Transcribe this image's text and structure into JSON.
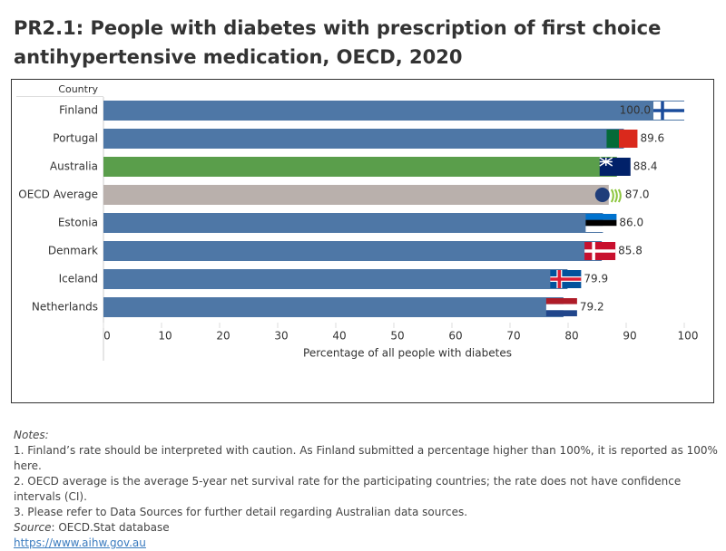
{
  "chart_data": {
    "type": "hbar",
    "title": "PR2.1: People with diabetes with prescription of first choice antihypertensive medication, OECD, 2020",
    "category_axis_label": "Country",
    "x_axis_label": "Percentage of all people with diabetes",
    "categories": [
      "Finland",
      "Portugal",
      "Australia",
      "OECD Average",
      "Estonia",
      "Denmark",
      "Iceland",
      "Netherlands"
    ],
    "values": [
      100.0,
      89.6,
      88.4,
      87.0,
      86.0,
      85.8,
      79.9,
      79.2
    ],
    "value_labels": [
      "100.0",
      "89.6",
      "88.4",
      "87.0",
      "86.0",
      "85.8",
      "79.9",
      "79.2"
    ],
    "colors": [
      "#4e77a6",
      "#4e77a6",
      "#5a9e4b",
      "#b9b0ac",
      "#4e77a6",
      "#4e77a6",
      "#4e77a6",
      "#4e77a6"
    ],
    "xlim": [
      0,
      100
    ],
    "xticks": [
      0,
      10,
      20,
      30,
      40,
      50,
      60,
      70,
      80,
      90,
      100
    ]
  },
  "notes": {
    "heading": "Notes:",
    "lines": [
      "1. Finland’s rate should be interpreted with caution. As Finland submitted a percentage higher than 100%, it is reported as 100% here.",
      "2. OECD average is the average 5-year net survival rate for the participating countries; the rate does not have confidence intervals (CI).",
      "3. Please refer to Data Sources for further detail regarding Australian data sources."
    ],
    "source_label": "Source",
    "source": ": OECD.Stat database",
    "link": "https://www.aihw.gov.au"
  }
}
